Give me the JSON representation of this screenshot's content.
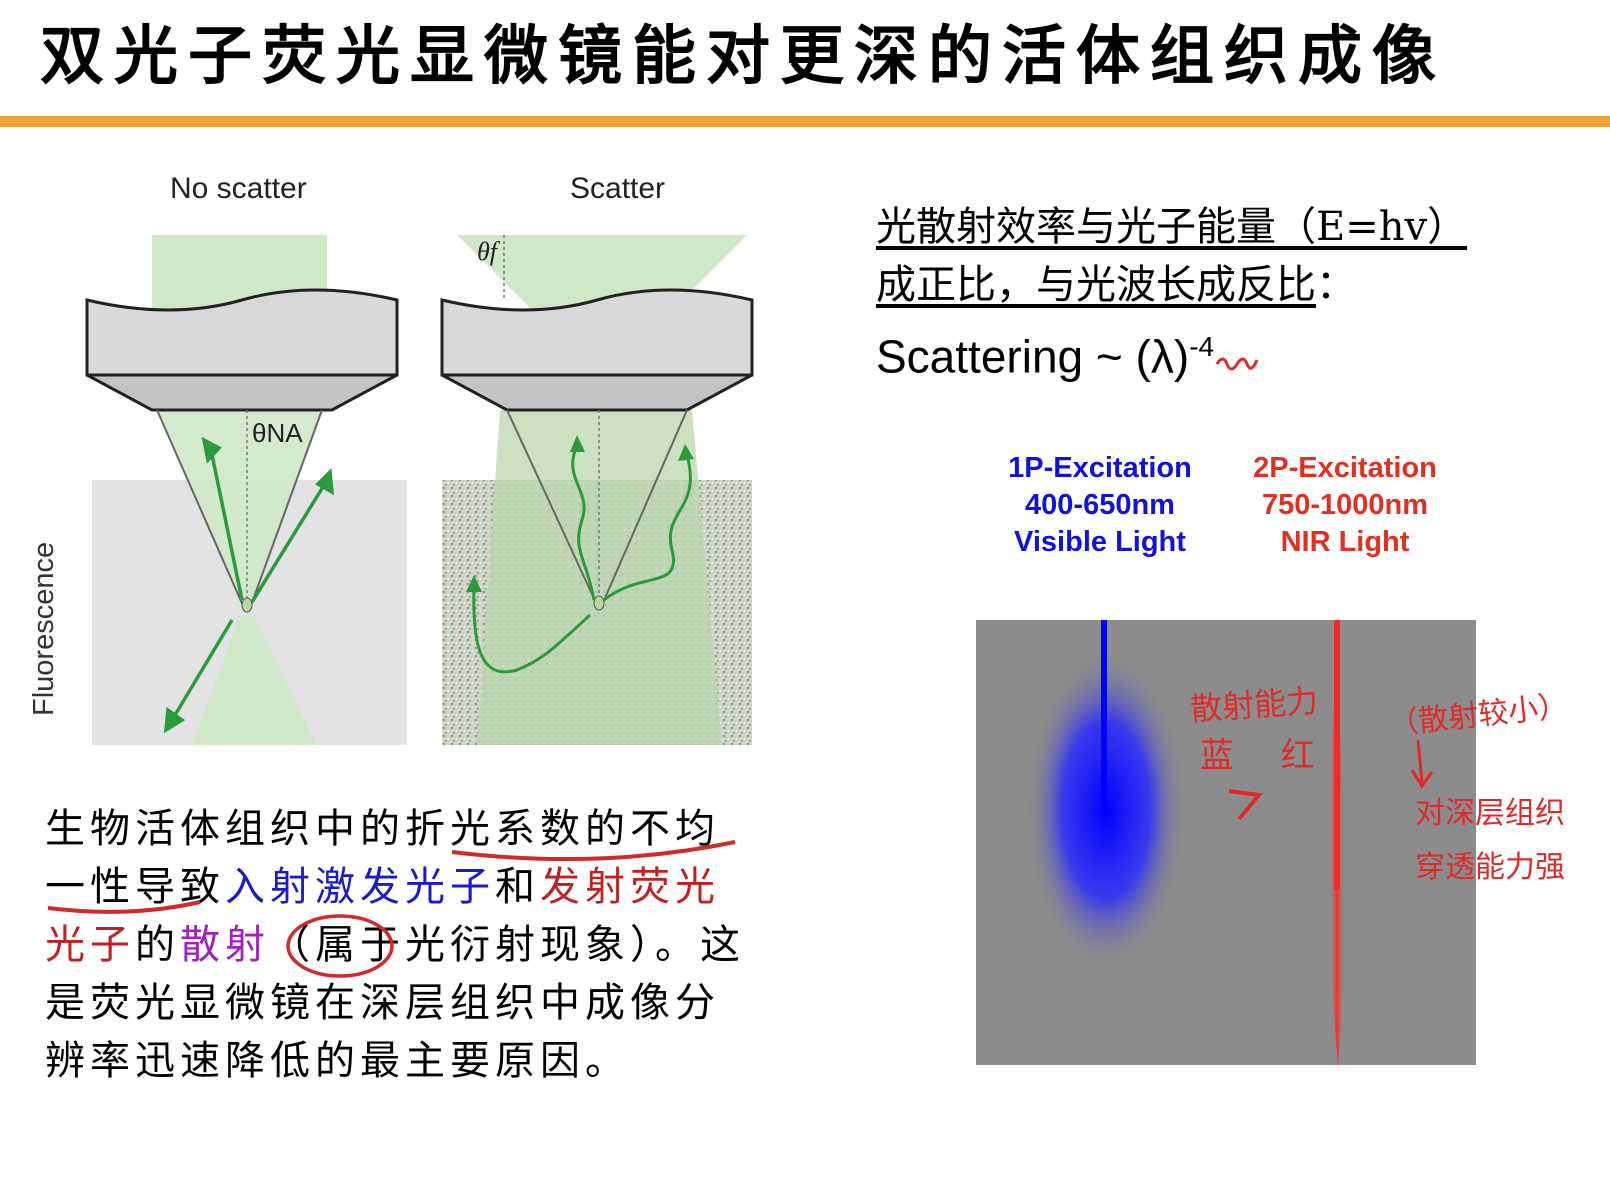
{
  "title": "双光子荧光显微镜能对更深的活体组织成像",
  "figure": {
    "left_label": "No scatter",
    "right_label": "Scatter",
    "axis_label": "Fluorescence",
    "theta_na": "θNA",
    "theta_f": "θf"
  },
  "right_text": {
    "line1": "光散射效率与光子能量（E=hv）",
    "line2": "成正比，与光波长成反比",
    "line2_end": "：",
    "scattering": "Scattering ~ (λ)",
    "exponent": "-4"
  },
  "excitation_1p": [
    "1P-Excitation",
    "400-650nm",
    "Visible Light"
  ],
  "excitation_2p": [
    "2P-Excitation",
    "750-1000nm",
    "NIR Light"
  ],
  "handwriting": {
    "note1": "散射能力",
    "note2": "蓝 红",
    "note3": "（散射较小）",
    "note4": "对深层组织",
    "note5": "穿透能力强"
  },
  "paragraph": {
    "p1": "生物活体组织中的",
    "p2": "折光系数的不",
    "p3": "均",
    "p4": "一性",
    "p5": "导致",
    "p6": "入射激发光子",
    "p7": "和",
    "p8": "发射",
    "p9": "荧光光子",
    "p10": "的",
    "p11": "散射",
    "p12": "（属于光衍射现象）。这是荧光显微镜在深层组织中成像分辨率迅速降低的最主要原因。"
  },
  "colors": {
    "accent": "#f0a23a",
    "blue": "#1a1ad0",
    "red": "#c02020",
    "green": "#2a9a3a"
  }
}
